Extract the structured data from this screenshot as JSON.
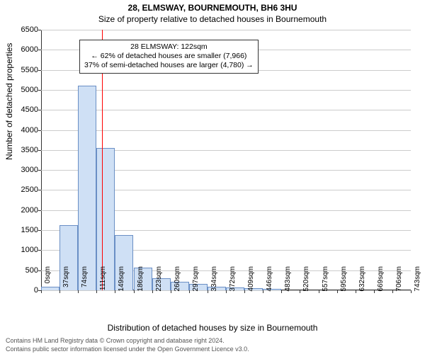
{
  "title_line1": "28, ELMSWAY, BOURNEMOUTH, BH6 3HU",
  "title_line2": "Size of property relative to detached houses in Bournemouth",
  "ylabel": "Number of detached properties",
  "xlabel": "Distribution of detached houses by size in Bournemouth",
  "footer1": "Contains HM Land Registry data © Crown copyright and database right 2024.",
  "footer2": "Contains public sector information licensed under the Open Government Licence v3.0.",
  "callout": {
    "line1": "28 ELMSWAY: 122sqm",
    "line2": "← 62% of detached houses are smaller (7,966)",
    "line3": "37% of semi-detached houses are larger (4,780) →"
  },
  "chart": {
    "type": "histogram",
    "ylim": [
      0,
      6500
    ],
    "ytick_step": 500,
    "yticks": [
      0,
      500,
      1000,
      1500,
      2000,
      2500,
      3000,
      3500,
      4000,
      4500,
      5000,
      5500,
      6000,
      6500
    ],
    "xtick_labels": [
      "0sqm",
      "37sqm",
      "74sqm",
      "111sqm",
      "149sqm",
      "186sqm",
      "223sqm",
      "260sqm",
      "297sqm",
      "334sqm",
      "372sqm",
      "409sqm",
      "446sqm",
      "483sqm",
      "520sqm",
      "557sqm",
      "595sqm",
      "632sqm",
      "669sqm",
      "706sqm",
      "743sqm"
    ],
    "bars": [
      80,
      1620,
      5100,
      3550,
      1370,
      570,
      300,
      220,
      160,
      90,
      70,
      50,
      30,
      0,
      0,
      0,
      0,
      0,
      0,
      0
    ],
    "bar_fill": "#cfe0f5",
    "bar_stroke": "#6a8fc5",
    "grid_color": "#cccccc",
    "axis_color": "#333333",
    "background_color": "#ffffff",
    "ref_line_x_sqm": 122,
    "ref_line_color": "#ff0000",
    "xmax_sqm": 743,
    "title_fontsize": 12,
    "label_fontsize": 12,
    "tick_fontsize": 10,
    "callout_left_sqm": 20,
    "callout_top_y": 6250
  }
}
